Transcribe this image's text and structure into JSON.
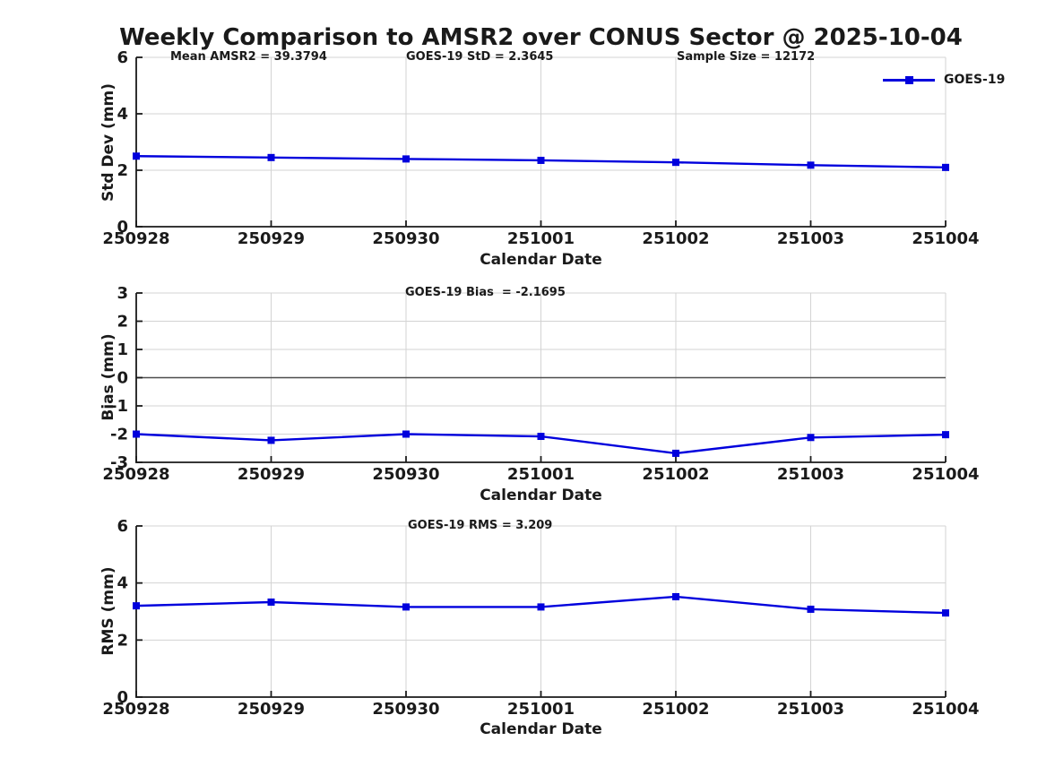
{
  "title": "Weekly Comparison to AMSR2 over CONUS Sector @ 2025-10-04",
  "legend": {
    "label": "GOES-19"
  },
  "colors": {
    "line": "#0000dd",
    "marker": "#0000dd",
    "grid": "#d3d3d3",
    "spine": "#1a1a1a",
    "zero_line": "#4d4d4d",
    "text": "#1a1a1a",
    "background": "#ffffff"
  },
  "chart_data": [
    {
      "type": "line",
      "categories": [
        "250928",
        "250929",
        "250930",
        "251001",
        "251002",
        "251003",
        "251004"
      ],
      "series": [
        {
          "name": "GOES-19",
          "values": [
            2.5,
            2.45,
            2.4,
            2.35,
            2.28,
            2.18,
            2.1
          ]
        }
      ],
      "annotations": [
        {
          "text": "Mean AMSR2 = 39.3794"
        },
        {
          "text": "GOES-19 StD = 2.3645"
        },
        {
          "text": "Sample Size = 12172"
        }
      ],
      "xlabel": "Calendar Date",
      "ylabel": "Std Dev (mm)",
      "ylim": [
        0,
        6
      ],
      "yticks": [
        0,
        2,
        4,
        6
      ],
      "grid": true,
      "zero_line": false,
      "marker": "square",
      "legend_position": "top-right"
    },
    {
      "type": "line",
      "categories": [
        "250928",
        "250929",
        "250930",
        "251001",
        "251002",
        "251003",
        "251004"
      ],
      "series": [
        {
          "name": "GOES-19",
          "values": [
            -2.0,
            -2.22,
            -2.0,
            -2.08,
            -2.68,
            -2.12,
            -2.02
          ]
        }
      ],
      "annotations": [
        {
          "text": "GOES-19 Bias  = -2.1695"
        }
      ],
      "xlabel": "Calendar Date",
      "ylabel": "Bias (mm)",
      "ylim": [
        -3,
        3
      ],
      "yticks": [
        -3,
        -2,
        -1,
        0,
        1,
        2,
        3
      ],
      "grid": true,
      "zero_line": true,
      "marker": "square",
      "legend_position": "none"
    },
    {
      "type": "line",
      "categories": [
        "250928",
        "250929",
        "250930",
        "251001",
        "251002",
        "251003",
        "251004"
      ],
      "series": [
        {
          "name": "GOES-19",
          "values": [
            3.2,
            3.33,
            3.16,
            3.16,
            3.52,
            3.08,
            2.95
          ]
        }
      ],
      "annotations": [
        {
          "text": "GOES-19 RMS = 3.209"
        }
      ],
      "xlabel": "Calendar Date",
      "ylabel": "RMS (mm)",
      "ylim": [
        0,
        6
      ],
      "yticks": [
        0,
        2,
        4,
        6
      ],
      "grid": true,
      "zero_line": false,
      "marker": "square",
      "legend_position": "none"
    }
  ]
}
